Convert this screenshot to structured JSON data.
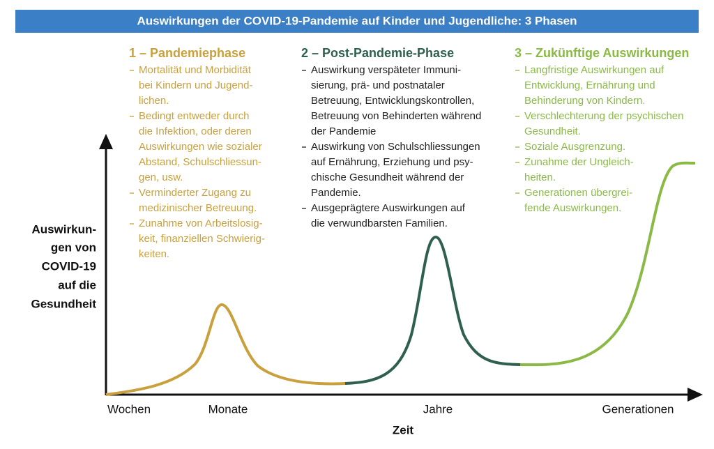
{
  "title": "Auswirkungen der COVID-19-Pandemie auf Kinder und Jugendliche: 3 Phasen",
  "y_axis_label": [
    "Auswirkun-",
    "gen von",
    "COVID-19",
    "auf die",
    "Gesundheit"
  ],
  "x_axis_title": "Zeit",
  "x_axis_labels": [
    "Wochen",
    "Monate",
    "Jahre",
    "Generationen"
  ],
  "phases": [
    {
      "heading": "1 – Pandemiephase",
      "color": "#c9a03c",
      "bullets": [
        [
          "Mortalität und Morbidität",
          "bei Kindern und Jugend-",
          "lichen."
        ],
        [
          "Bedingt entweder durch",
          "die Infektion, oder deren",
          "Auswirkungen wie sozialer",
          "Abstand, Schulschliessun-",
          "gen, usw."
        ],
        [
          "Verminderter Zugang zu",
          "medizinischer Betreuung."
        ],
        [
          "Zunahme von Arbeitslosig-",
          "keit, finanziellen Schwierig-",
          "keiten."
        ]
      ]
    },
    {
      "heading": "2 – Post-Pandemie-Phase",
      "color": "#2f5f4f",
      "bullets": [
        [
          "Auswirkung verspäteter Immuni-",
          "sierung, prä- und postnataler",
          "Betreuung, Entwicklungskontrollen,",
          "Betreuung von Behinderten während",
          "der Pandemie"
        ],
        [
          "Auswirkung von Schulschliessungen",
          "auf Ernährung, Erziehung und psy-",
          "chische Gesundheit während der",
          "Pandemie."
        ],
        [
          "Ausgeprägtere Auswirkungen auf",
          "die verwundbarsten Familien."
        ]
      ]
    },
    {
      "heading": "3 – Zukünftige Auswirkungen",
      "color": "#8aba45",
      "bullets": [
        [
          "Langfristige Auswirkungen auf",
          "Entwicklung, Ernährung und",
          "Behinderung von Kindern."
        ],
        [
          "Verschlechterung der psychischen",
          "Gesundheit."
        ],
        [
          "Soziale Ausgrenzung."
        ],
        [
          "Zunahme der Ungleich-",
          "heiten."
        ],
        [
          "Generationen übergrei-",
          "fende Auswirkungen."
        ]
      ]
    }
  ]
}
